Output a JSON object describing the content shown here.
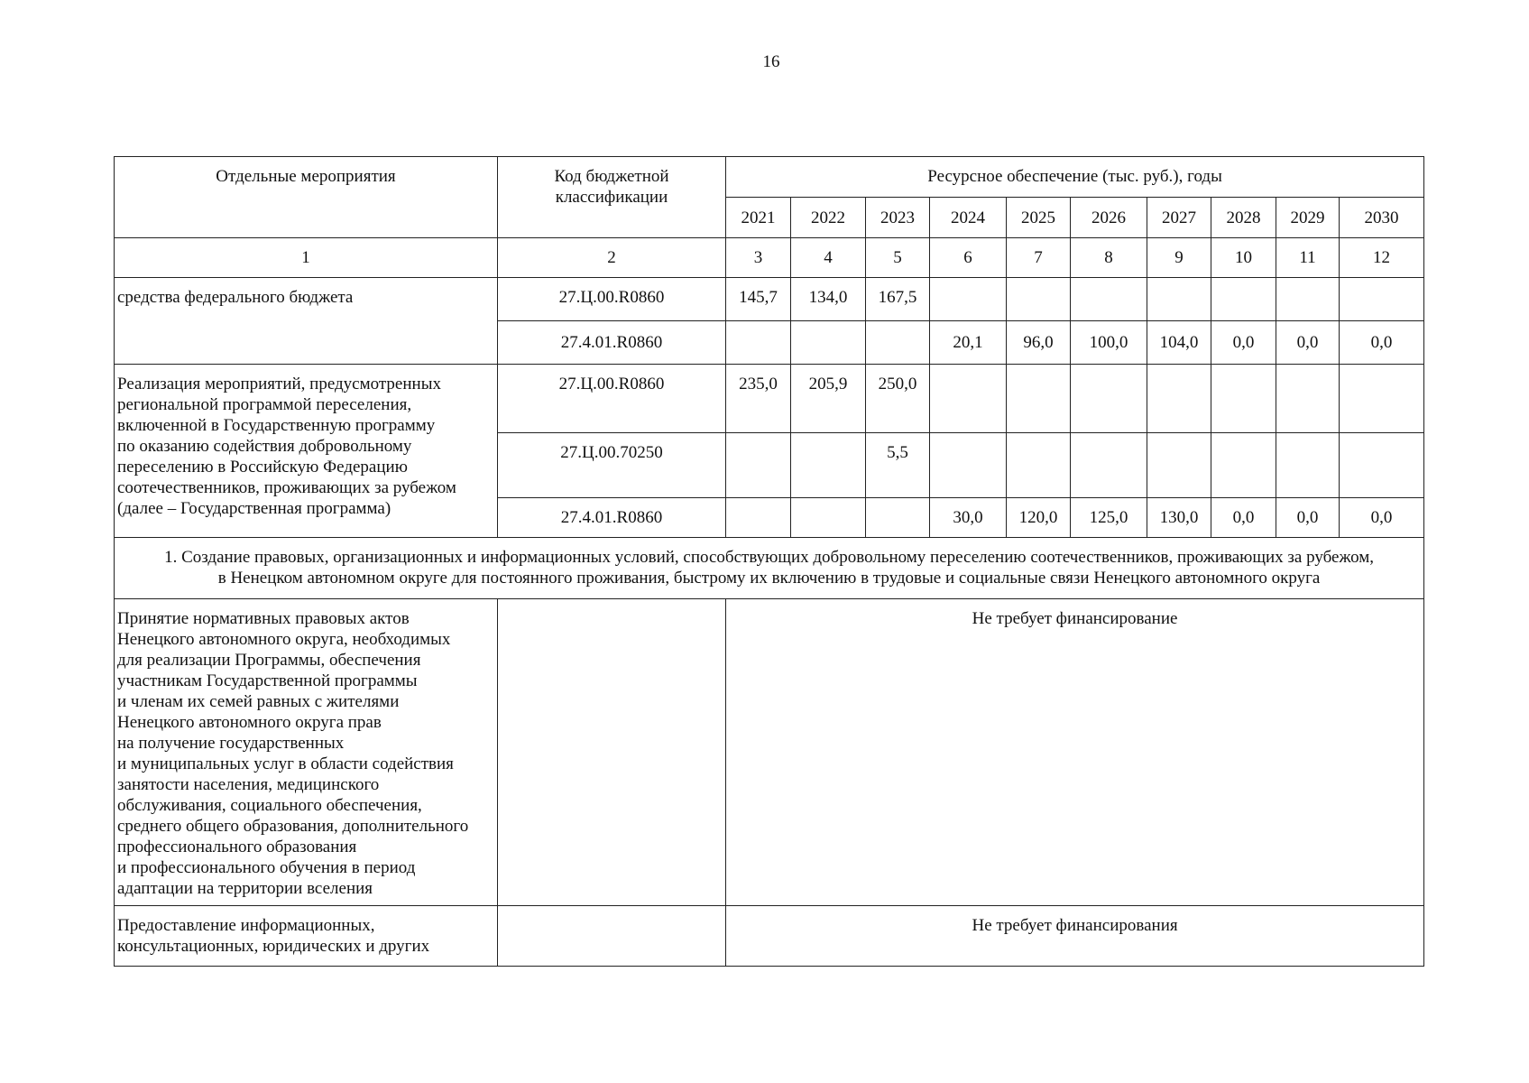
{
  "page_number": "16",
  "header": {
    "col1": "Отдельные мероприятия",
    "col2": "Код бюджетной классификации",
    "resource": "Ресурсное обеспечение (тыс. руб.), годы",
    "years": [
      "2021",
      "2022",
      "2023",
      "2024",
      "2025",
      "2026",
      "2027",
      "2028",
      "2029",
      "2030"
    ],
    "numbers": [
      "1",
      "2",
      "3",
      "4",
      "5",
      "6",
      "7",
      "8",
      "9",
      "10",
      "11",
      "12"
    ]
  },
  "groups": [
    {
      "name": "средства федерального бюджета",
      "rows": [
        {
          "code": "27.Ц.00.R0860",
          "values": [
            "145,7",
            "134,0",
            "167,5",
            "",
            "",
            "",
            "",
            "",
            "",
            ""
          ]
        },
        {
          "code": "27.4.01.R0860",
          "values": [
            "",
            "",
            "",
            "20,1",
            "96,0",
            "100,0",
            "104,0",
            "0,0",
            "0,0",
            "0,0"
          ]
        }
      ]
    },
    {
      "name": "Реализация мероприятий, предусмотренных\nрегиональной программой переселения,\nвключенной в Государственную программу\nпо оказанию содействия добровольному\nпереселению в Российскую Федерацию\nсоотечественников, проживающих за рубежом\n(далее – Государственная программа)",
      "rows": [
        {
          "code": "27.Ц.00.R0860",
          "values": [
            "235,0",
            "205,9",
            "250,0",
            "",
            "",
            "",
            "",
            "",
            "",
            ""
          ]
        },
        {
          "code": "27.Ц.00.70250",
          "values": [
            "",
            "",
            "5,5",
            "",
            "",
            "",
            "",
            "",
            "",
            ""
          ]
        },
        {
          "code": "27.4.01.R0860",
          "values": [
            "",
            "",
            "",
            "30,0",
            "120,0",
            "125,0",
            "130,0",
            "0,0",
            "0,0",
            "0,0"
          ]
        }
      ]
    }
  ],
  "section_title": "1. Создание правовых, организационных и информационных условий, способствующих добровольному переселению соотечественников, проживающих за рубежом,\nв Ненецком автономном округе для постоянного проживания, быстрому их включению в трудовые и социальные связи Ненецкого автономного округа",
  "activities": [
    {
      "name": "Принятие нормативных правовых актов\nНенецкого автономного округа, необходимых\nдля реализации Программы, обеспечения\nучастникам Государственной программы\nи членам их семей равных с жителями\nНенецкого автономного округа прав\nна получение государственных\nи муниципальных услуг в области содействия\nзанятости населения, медицинского\nобслуживания, социального обеспечения,\nсреднего общего образования, дополнительного\nпрофессионального образования\nи профессионального обучения в период\nадаптации на территории вселения",
      "code": "",
      "funding": "Не требует финансирование"
    },
    {
      "name": "Предоставление информационных,\nконсультационных, юридических и других",
      "code": "",
      "funding": "Не требует финансирования"
    }
  ]
}
